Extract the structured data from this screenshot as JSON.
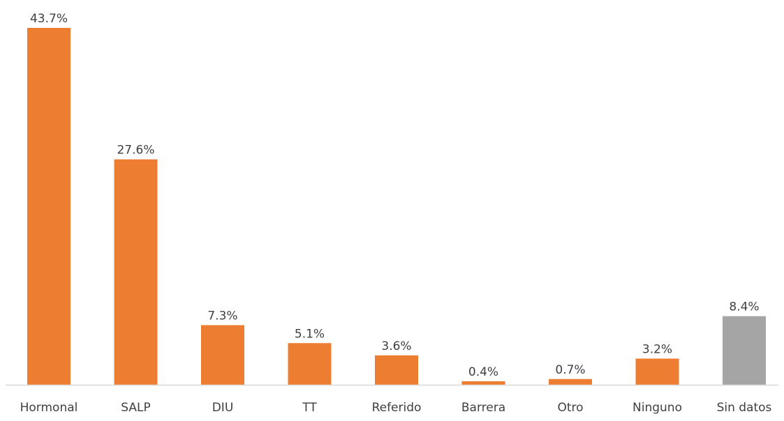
{
  "chart_data": {
    "type": "bar",
    "categories": [
      "Hormonal",
      "SALP",
      "DIU",
      "TT",
      "Referido",
      "Barrera",
      "Otro",
      "Ninguno",
      "Sin datos"
    ],
    "values": [
      43.7,
      27.6,
      7.3,
      5.1,
      3.6,
      0.4,
      0.7,
      3.2,
      8.4
    ],
    "data_labels": [
      "43.7%",
      "27.6%",
      "7.3%",
      "5.1%",
      "3.6%",
      "0.4%",
      "0.7%",
      "3.2%",
      "8.4%"
    ],
    "bar_colors": [
      "#ED7D31",
      "#ED7D31",
      "#ED7D31",
      "#ED7D31",
      "#ED7D31",
      "#ED7D31",
      "#ED7D31",
      "#ED7D31",
      "#A5A5A5"
    ],
    "unit": "%",
    "title": "",
    "xlabel": "",
    "ylabel": "",
    "ylim": [
      0,
      43.7
    ],
    "grid": false,
    "legend": "none"
  },
  "colors": {
    "bar_primary": "#ED7D31",
    "bar_missing": "#A5A5A5",
    "axis": "#D9D9D9",
    "text": "#404040"
  }
}
